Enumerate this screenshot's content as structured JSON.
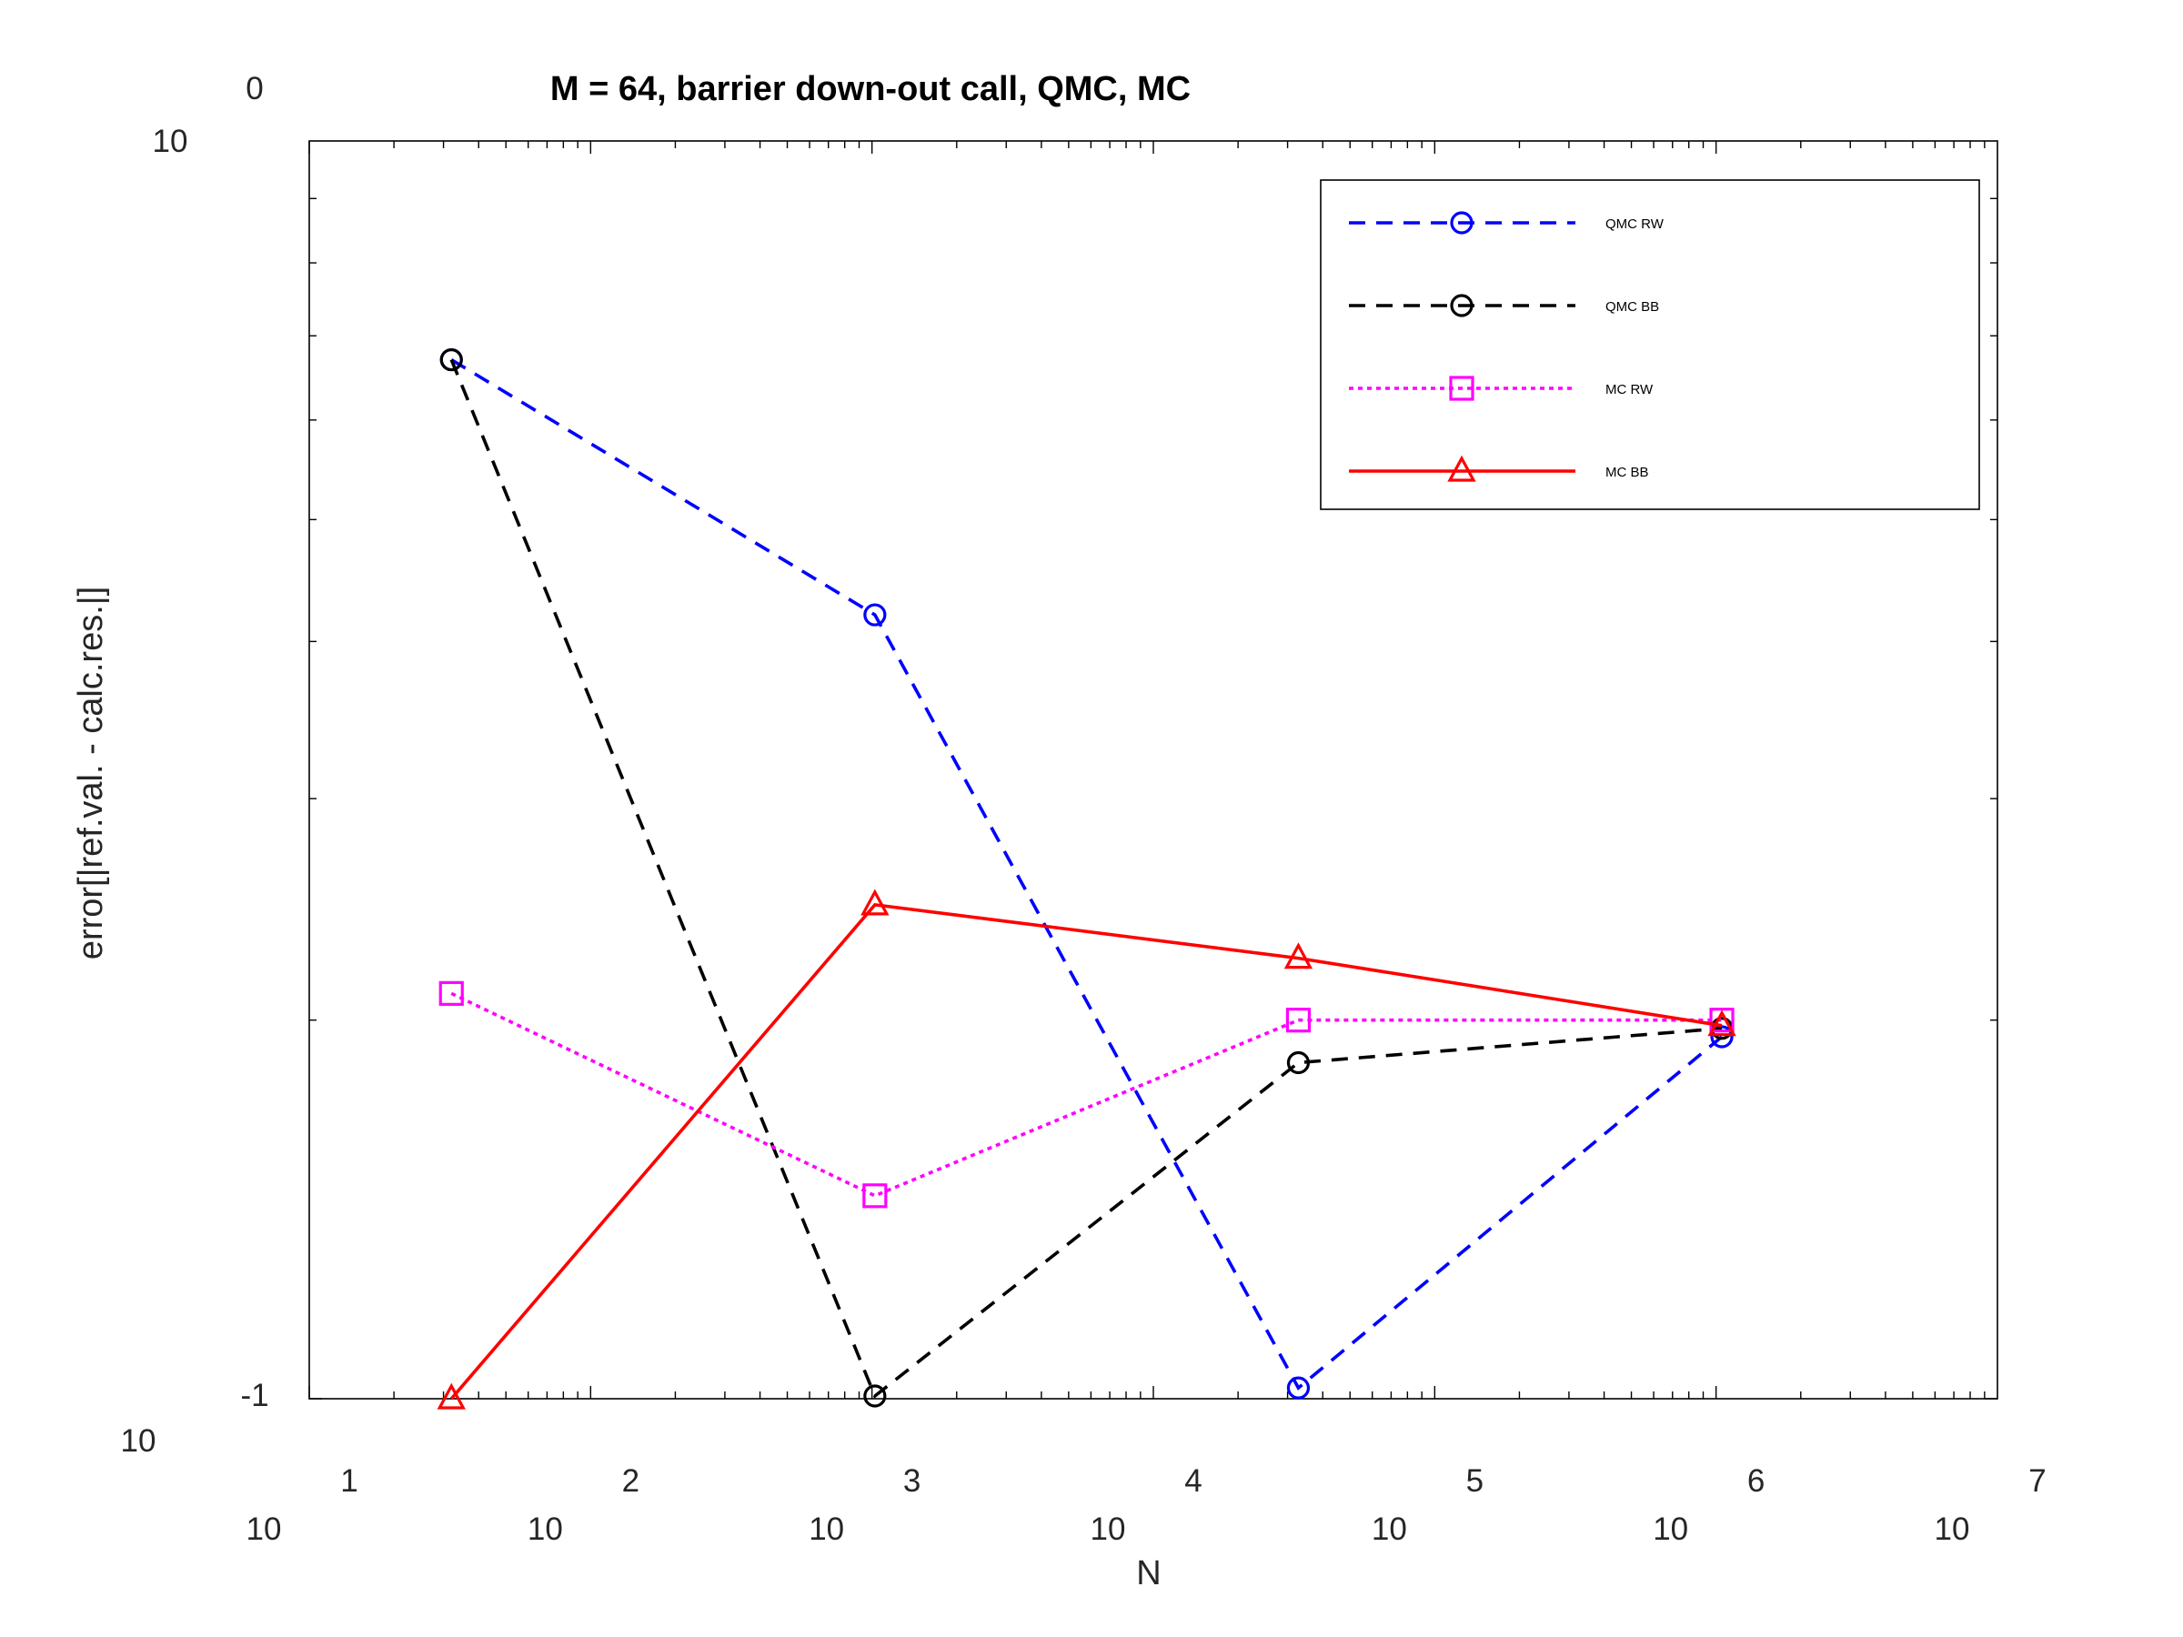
{
  "chart_data": {
    "type": "line",
    "title": "M = 64, barrier down-out call, QMC, MC",
    "xlabel": "N",
    "ylabel": "error[|ref.val. - calc.res.|]",
    "xscale": "log",
    "yscale": "log",
    "xlim": [
      10,
      10000000
    ],
    "ylim": [
      0.1,
      1
    ],
    "xticks": [
      {
        "base": "10",
        "exp": "1"
      },
      {
        "base": "10",
        "exp": "2"
      },
      {
        "base": "10",
        "exp": "3"
      },
      {
        "base": "10",
        "exp": "4"
      },
      {
        "base": "10",
        "exp": "5"
      },
      {
        "base": "10",
        "exp": "6"
      },
      {
        "base": "10",
        "exp": "7"
      }
    ],
    "yticks": [
      {
        "base": "10",
        "exp": "-1"
      },
      {
        "base": "10",
        "exp": "0"
      }
    ],
    "x": [
      32,
      1024,
      32768,
      1048576
    ],
    "series": [
      {
        "name": "QMC RW",
        "values": [
          0.67,
          0.42,
          0.102,
          0.194
        ],
        "color": "#0000ff",
        "dash": "dashed",
        "marker": "circle"
      },
      {
        "name": "QMC BB",
        "values": [
          0.67,
          0.1005,
          0.185,
          0.197
        ],
        "color": "#000000",
        "dash": "dashed",
        "marker": "circle"
      },
      {
        "name": "MC RW",
        "values": [
          0.21,
          0.145,
          0.2,
          0.2
        ],
        "color": "#ff00ff",
        "dash": "dotted",
        "marker": "square"
      },
      {
        "name": "MC BB",
        "values": [
          0.1,
          0.247,
          0.224,
          0.198
        ],
        "color": "#ff0000",
        "dash": "solid",
        "marker": "triangle"
      }
    ],
    "legend_position": "top-right",
    "grid": false
  }
}
